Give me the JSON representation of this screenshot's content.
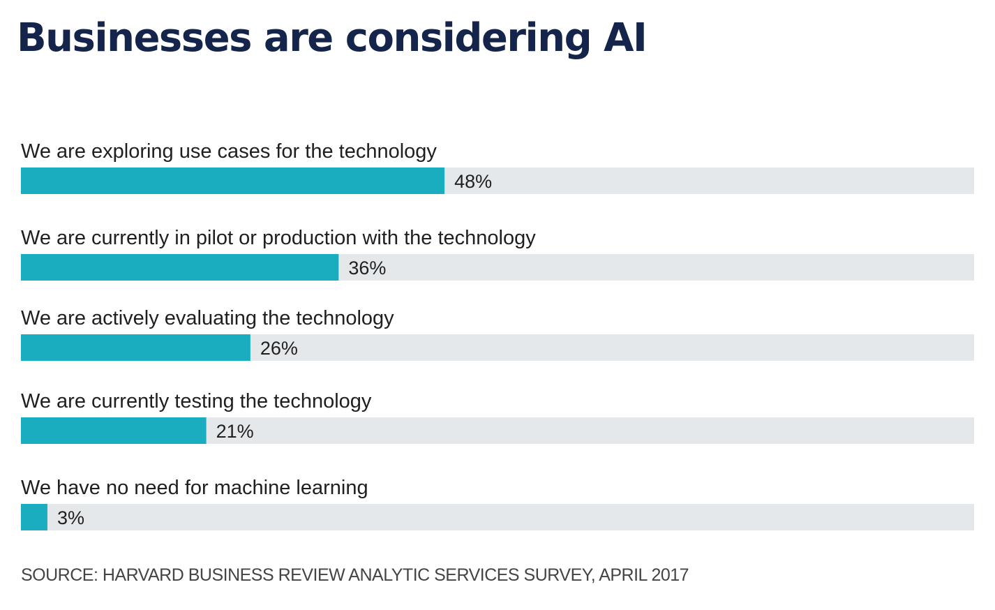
{
  "chart_data": {
    "type": "bar",
    "orientation": "horizontal",
    "title": "Businesses are considering AI",
    "categories": [
      "We are exploring use cases for the technology",
      "We are currently in pilot or production with the technology",
      "We are actively evaluating the technology",
      "We are currently testing the technology",
      "We have no need for machine learning"
    ],
    "values": [
      48,
      36,
      26,
      21,
      3
    ],
    "value_labels": [
      "48%",
      "36%",
      "26%",
      "21%",
      "3%"
    ],
    "xlim": [
      0,
      108
    ],
    "unit": "%",
    "source": "SOURCE: HARVARD BUSINESS REVIEW ANALYTIC SERVICES SURVEY, APRIL 2017"
  },
  "colors": {
    "bar": "#1aadbf",
    "track": "#e5e8ea",
    "title": "#14244a"
  }
}
